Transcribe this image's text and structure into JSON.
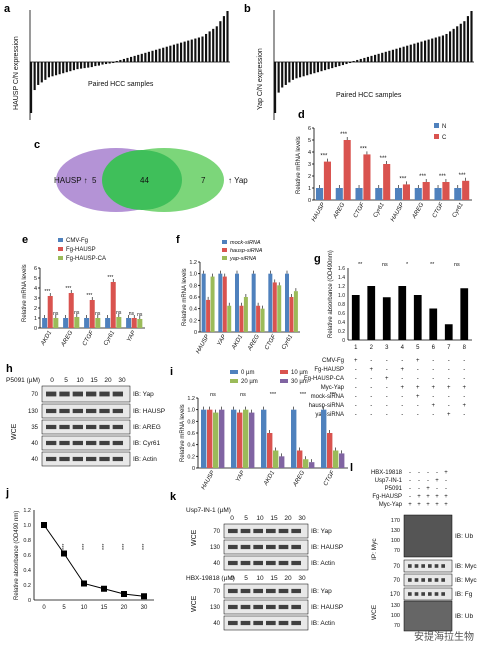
{
  "panels": {
    "a": {
      "letter": "a",
      "ylabel": "HAUSP C/N expression",
      "xlabel": "Paired HCC samples"
    },
    "b": {
      "letter": "b",
      "ylabel": "Yap C/N expression",
      "xlabel": "Paired HCC samples"
    },
    "c": {
      "letter": "c",
      "left": "HAUSP",
      "right": "Yap",
      "n_left": "5",
      "n_mid": "44",
      "n_right": "7"
    },
    "d": {
      "letter": "d",
      "ylabel": "Relative mRNA levels",
      "legend": [
        "N",
        "C"
      ],
      "groups": [
        "HAUSP",
        "AREG",
        "CTGF",
        "Cyr61",
        "HAUSP",
        "AREG",
        "CTGF",
        "Cyr61"
      ],
      "stars": "***",
      "ticks": [
        "0",
        "1",
        "2",
        "3",
        "4",
        "5",
        "6"
      ]
    },
    "e": {
      "letter": "e",
      "ylabel": "Relative mRNA levels",
      "legend": [
        "CMV-Fg",
        "Fg-HAUSP",
        "Fg-HAUSP-CA"
      ],
      "groups": [
        "AKD1",
        "AREG",
        "CTGF",
        "Cyr61",
        "YAP"
      ],
      "ticks": [
        "0",
        "1",
        "2",
        "3",
        "4",
        "5",
        "6"
      ],
      "sig": [
        "***",
        "ns",
        "***",
        "ns",
        "***",
        "ns",
        "***",
        "ns",
        "ns",
        "ns"
      ]
    },
    "f": {
      "letter": "f",
      "ylabel": "Relative mRNA levels",
      "legend": [
        "mock-siRNA",
        "hausp-siRNA",
        "yap-siRNA"
      ],
      "groups": [
        "HAUSP",
        "YAP",
        "AKD1",
        "AREG",
        "CTGF",
        "Cyr61"
      ],
      "ticks": [
        "0",
        "0.2",
        "0.4",
        "0.6",
        "0.8",
        "1.0",
        "1.2"
      ]
    },
    "g": {
      "letter": "g",
      "ylabel": "Relative absorbance (OD490nm)",
      "ticks": [
        "0",
        "0.2",
        "0.4",
        "0.6",
        "0.8",
        "1.0",
        "1.2",
        "1.4",
        "1.6"
      ],
      "xnums": [
        "1",
        "2",
        "3",
        "4",
        "5",
        "6",
        "7",
        "8"
      ],
      "rows": [
        "CMV-Fg",
        "Fg-HAUSP",
        "Fg-HAUSP-CA",
        "Myc-Yap",
        "mock-siRNA",
        "hausp-siRNA",
        "yap-siRNA"
      ],
      "sig": [
        "**",
        "ns",
        "*",
        "**",
        "ns"
      ]
    },
    "h": {
      "letter": "h",
      "treatment": "P5091 (µM)",
      "doses": [
        "0",
        "5",
        "10",
        "15",
        "20",
        "30"
      ],
      "side": "WCE",
      "mw": [
        "70",
        "130",
        "35",
        "40",
        "40"
      ],
      "blots": [
        "IB: Yap",
        "IB: HAUSP",
        "IB: AREG",
        "IB: Cyr61",
        "IB: Actin"
      ]
    },
    "i": {
      "letter": "i",
      "ylabel": "Relative mRNA levels",
      "legend": [
        "0 µm",
        "10 µm",
        "20 µm",
        "30 µm"
      ],
      "groups": [
        "HAUSP",
        "YAP",
        "AKD1",
        "AREG",
        "CTGF"
      ],
      "sig": [
        "ns",
        "ns",
        "***",
        "***",
        "***"
      ],
      "ticks": [
        "0",
        "0.2",
        "0.4",
        "0.6",
        "0.8",
        "1.0",
        "1.2"
      ]
    },
    "j": {
      "letter": "j",
      "ylabel": "Relative absorbance (OD490 nm)",
      "xticks": [
        "0",
        "5",
        "10",
        "15",
        "20",
        "30"
      ],
      "ticks": [
        "0",
        "0.2",
        "0.4",
        "0.6",
        "0.8",
        "1.0",
        "1.2"
      ]
    },
    "k": {
      "letter": "k",
      "t1": "Usp7-IN-1 (µM)",
      "t2": "HBX-19818 (µM)",
      "doses": [
        "0",
        "5",
        "10",
        "15",
        "20",
        "30"
      ],
      "side": "WCE",
      "mw1": [
        "70",
        "130",
        "40"
      ],
      "mw2": [
        "70",
        "130",
        "40"
      ],
      "blots1": [
        "IB: Yap",
        "IB: HAUSP",
        "IB: Actin"
      ],
      "blots2": [
        "IB: Yap",
        "IB: HAUSP",
        "IB: Actin"
      ]
    },
    "l": {
      "letter": "l",
      "rows": [
        "HBX-19818",
        "Usp7-IN-1",
        "P5091",
        "Fg-HAUSP",
        "Myc-Yap"
      ],
      "signs": [
        [
          "-",
          "-",
          "-",
          "-",
          "+"
        ],
        [
          "-",
          "-",
          "-",
          "+",
          "-"
        ],
        [
          "-",
          "-",
          "+",
          "-",
          "-"
        ],
        [
          "-",
          "+",
          "+",
          "+",
          "+"
        ],
        [
          "+",
          "+",
          "+",
          "+",
          "+"
        ]
      ],
      "ip": "IP: Myc",
      "wce": "WCE",
      "mw": [
        "170",
        "130",
        "100",
        "70",
        "70",
        "70",
        "170",
        "130",
        "100",
        "70"
      ],
      "blots": [
        "IB: Ub",
        "IB: Myc",
        "IB: Myc",
        "IB: Fg",
        "IB: Ub"
      ]
    }
  },
  "watermark": "安提海拉生物",
  "chart_data": [
    {
      "panel": "d",
      "type": "bar",
      "categories": [
        "HAUSP",
        "AREG",
        "CTGF",
        "Cyr61",
        "HAUSP",
        "AREG",
        "CTGF",
        "Cyr61"
      ],
      "series": [
        {
          "name": "N",
          "values": [
            1,
            1,
            1,
            1,
            1,
            1,
            1,
            1
          ]
        },
        {
          "name": "C",
          "values": [
            3.2,
            5.0,
            3.8,
            3.0,
            1.3,
            1.5,
            1.5,
            1.6
          ]
        }
      ],
      "ylim": [
        0,
        6
      ],
      "colors": [
        "#4f81bd",
        "#d9534f"
      ]
    },
    {
      "panel": "e",
      "type": "bar",
      "categories": [
        "AKD1",
        "AREG",
        "CTGF",
        "Cyr61",
        "YAP"
      ],
      "series": [
        {
          "name": "CMV-Fg",
          "values": [
            1,
            1,
            1,
            1,
            1
          ]
        },
        {
          "name": "Fg-HAUSP",
          "values": [
            3.2,
            3.5,
            2.8,
            4.6,
            1.0
          ]
        },
        {
          "name": "Fg-HAUSP-CA",
          "values": [
            1.0,
            1.1,
            1.0,
            1.1,
            0.9
          ]
        }
      ],
      "ylim": [
        0,
        6
      ],
      "colors": [
        "#4f81bd",
        "#d9534f",
        "#9bbb59"
      ]
    },
    {
      "panel": "f",
      "type": "bar",
      "categories": [
        "HAUSP",
        "YAP",
        "AKD1",
        "AREG",
        "CTGF",
        "Cyr61"
      ],
      "series": [
        {
          "name": "mock-siRNA",
          "values": [
            1,
            1,
            1,
            1,
            1,
            1
          ]
        },
        {
          "name": "hausp-siRNA",
          "values": [
            0.55,
            0.95,
            0.45,
            0.45,
            0.85,
            0.6
          ]
        },
        {
          "name": "yap-siRNA",
          "values": [
            0.95,
            0.45,
            0.6,
            0.4,
            0.8,
            0.7
          ]
        }
      ],
      "ylim": [
        0,
        1.2
      ],
      "colors": [
        "#4f81bd",
        "#d9534f",
        "#9bbb59"
      ]
    },
    {
      "panel": "g",
      "type": "bar",
      "categories": [
        "1",
        "2",
        "3",
        "4",
        "5",
        "6",
        "7",
        "8"
      ],
      "values": [
        1.0,
        1.2,
        0.95,
        1.2,
        1.0,
        0.7,
        0.35,
        1.15
      ],
      "ylim": [
        0,
        1.6
      ],
      "colors": [
        "#000000"
      ]
    },
    {
      "panel": "i",
      "type": "bar",
      "categories": [
        "HAUSP",
        "YAP",
        "AKD1",
        "AREG",
        "CTGF"
      ],
      "series": [
        {
          "name": "0 µm",
          "values": [
            1,
            1,
            1,
            1,
            1
          ]
        },
        {
          "name": "10 µm",
          "values": [
            1,
            0.95,
            0.6,
            0.3,
            0.6
          ]
        },
        {
          "name": "20 µm",
          "values": [
            0.95,
            1.0,
            0.3,
            0.15,
            0.3
          ]
        },
        {
          "name": "30 µm",
          "values": [
            1,
            0.95,
            0.2,
            0.1,
            0.25
          ]
        }
      ],
      "ylim": [
        0,
        1.2
      ],
      "colors": [
        "#4f81bd",
        "#d9534f",
        "#9bbb59",
        "#8064a2"
      ]
    },
    {
      "panel": "j",
      "type": "line",
      "x": [
        "0",
        "5",
        "10",
        "15",
        "20",
        "30"
      ],
      "values": [
        1.0,
        0.62,
        0.22,
        0.15,
        0.08,
        0.05
      ],
      "ylim": [
        0,
        1.2
      ],
      "colors": [
        "#000000"
      ]
    },
    {
      "panel": "a",
      "type": "bar",
      "n": 56,
      "values_desc": "waterfall",
      "values": [
        -1.0,
        -0.55,
        -0.45,
        -0.4,
        -0.35,
        -0.3,
        -0.28,
        -0.26,
        -0.24,
        -0.22,
        -0.2,
        -0.18,
        -0.16,
        -0.14,
        -0.13,
        -0.12,
        -0.11,
        -0.1,
        -0.08,
        -0.07,
        -0.05,
        -0.04,
        -0.03,
        -0.02,
        0.02,
        0.04,
        0.06,
        0.08,
        0.1,
        0.12,
        0.14,
        0.16,
        0.18,
        0.2,
        0.22,
        0.24,
        0.26,
        0.28,
        0.3,
        0.32,
        0.34,
        0.36,
        0.38,
        0.4,
        0.42,
        0.44,
        0.46,
        0.48,
        0.5,
        0.55,
        0.6,
        0.65,
        0.7,
        0.8,
        0.9,
        1.0
      ]
    },
    {
      "panel": "b",
      "type": "bar",
      "n": 56,
      "values": [
        -1.0,
        -0.6,
        -0.5,
        -0.45,
        -0.4,
        -0.35,
        -0.32,
        -0.3,
        -0.28,
        -0.26,
        -0.24,
        -0.22,
        -0.2,
        -0.18,
        -0.16,
        -0.14,
        -0.12,
        -0.1,
        -0.08,
        -0.06,
        -0.04,
        -0.02,
        0.02,
        0.04,
        0.06,
        0.08,
        0.1,
        0.12,
        0.14,
        0.16,
        0.18,
        0.2,
        0.22,
        0.24,
        0.26,
        0.28,
        0.3,
        0.32,
        0.34,
        0.36,
        0.38,
        0.4,
        0.42,
        0.44,
        0.46,
        0.48,
        0.5,
        0.52,
        0.55,
        0.6,
        0.65,
        0.7,
        0.75,
        0.8,
        0.9,
        1.0
      ]
    }
  ]
}
